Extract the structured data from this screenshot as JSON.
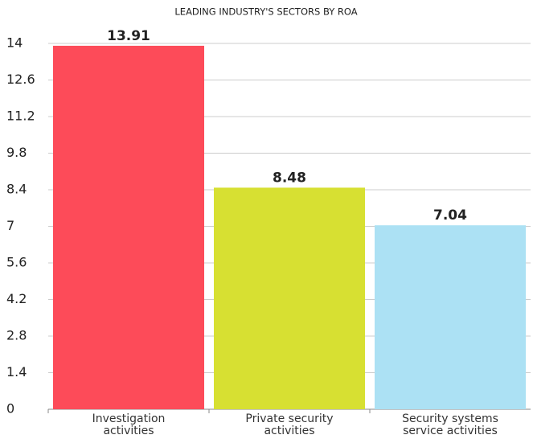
{
  "chart_data": {
    "type": "bar",
    "title": "LEADING INDUSTRY'S SECTORS BY ROA",
    "categories": [
      "Investigation activities",
      "Private security activities",
      "Security systems service activities"
    ],
    "values": [
      13.91,
      8.48,
      7.04
    ],
    "colors": [
      "#fd4b59",
      "#d7e032",
      "#ace1f4"
    ],
    "ylim": [
      0,
      14
    ],
    "yticks": [
      0,
      1.4,
      2.8,
      4.2,
      5.6,
      7,
      8.4,
      9.8,
      11.2,
      12.6,
      14
    ],
    "grid": true
  }
}
